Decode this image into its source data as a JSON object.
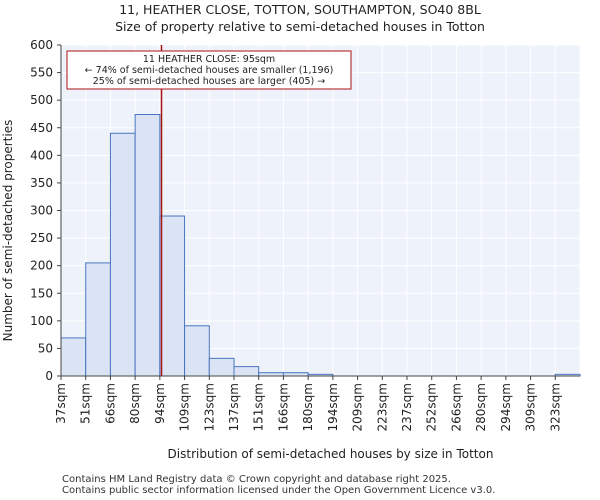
{
  "page": {
    "title_line1": "11, HEATHER CLOSE, TOTTON, SOUTHAMPTON, SO40 8BL",
    "title_line2": "Size of property relative to semi-detached houses in Totton",
    "footer_line1": "Contains HM Land Registry data © Crown copyright and database right 2025.",
    "footer_line2": "Contains public sector information licensed under the Open Government Licence v3.0."
  },
  "chart_data": {
    "type": "bar",
    "title": "11, HEATHER CLOSE, TOTTON, SOUTHAMPTON, SO40 8BL",
    "subtitle": "Size of property relative to semi-detached houses in Totton",
    "xlabel": "Distribution of semi-detached houses by size in Totton",
    "ylabel": "Number of semi-detached properties",
    "categories": [
      "37sqm",
      "51sqm",
      "66sqm",
      "80sqm",
      "94sqm",
      "109sqm",
      "123sqm",
      "137sqm",
      "151sqm",
      "166sqm",
      "180sqm",
      "194sqm",
      "209sqm",
      "223sqm",
      "237sqm",
      "252sqm",
      "266sqm",
      "280sqm",
      "294sqm",
      "309sqm",
      "323sqm"
    ],
    "values": [
      69,
      205,
      440,
      474,
      290,
      91,
      32,
      17,
      6,
      6,
      3,
      0,
      0,
      0,
      0,
      0,
      0,
      0,
      0,
      0,
      3
    ],
    "ylim": [
      0,
      600
    ],
    "yticks": [
      0,
      50,
      100,
      150,
      200,
      250,
      300,
      350,
      400,
      450,
      500,
      550,
      600
    ],
    "grid": true,
    "bar_color": "#dbe4f4",
    "bar_edge_color": "#4a76c0",
    "marker": {
      "value_sqm": 95,
      "color": "#aa1111",
      "annotation_lines": [
        "11 HEATHER CLOSE: 95sqm",
        "← 74% of semi-detached houses are smaller (1,196)",
        "25% of semi-detached houses are larger (405) →"
      ]
    }
  }
}
